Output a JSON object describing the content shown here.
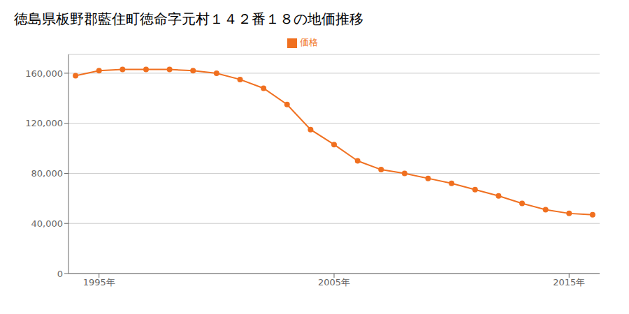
{
  "chart_data": {
    "type": "line",
    "title": "徳島県板野郡藍住町徳命字元村１４２番１８の地価推移",
    "x": [
      1994,
      1995,
      1996,
      1997,
      1998,
      1999,
      2000,
      2001,
      2002,
      2003,
      2004,
      2005,
      2006,
      2007,
      2008,
      2009,
      2010,
      2011,
      2012,
      2013,
      2014,
      2015,
      2016
    ],
    "series": [
      {
        "name": "価格",
        "color": "#f07020",
        "marker": "circle",
        "values": [
          158000,
          162000,
          163000,
          163000,
          163000,
          162000,
          160000,
          155000,
          148000,
          135000,
          115000,
          103000,
          90000,
          83000,
          80000,
          76000,
          72000,
          67000,
          62000,
          56000,
          51000,
          48000,
          47000
        ]
      }
    ],
    "xlim": [
      1993.7,
      2016.3
    ],
    "xticks": [
      {
        "value": 1995,
        "label": "1995年"
      },
      {
        "value": 2005,
        "label": "2005年"
      },
      {
        "value": 2015,
        "label": "2015年"
      }
    ],
    "ylim": [
      0,
      175000
    ],
    "yticks": [
      0,
      {
        "value": 40000,
        "label": "40,000"
      },
      {
        "value": 80000,
        "label": "80,000"
      },
      {
        "value": 120000,
        "label": "120,000"
      },
      {
        "value": 160000,
        "label": "160,000"
      }
    ],
    "grid": "y",
    "legend": "top"
  }
}
